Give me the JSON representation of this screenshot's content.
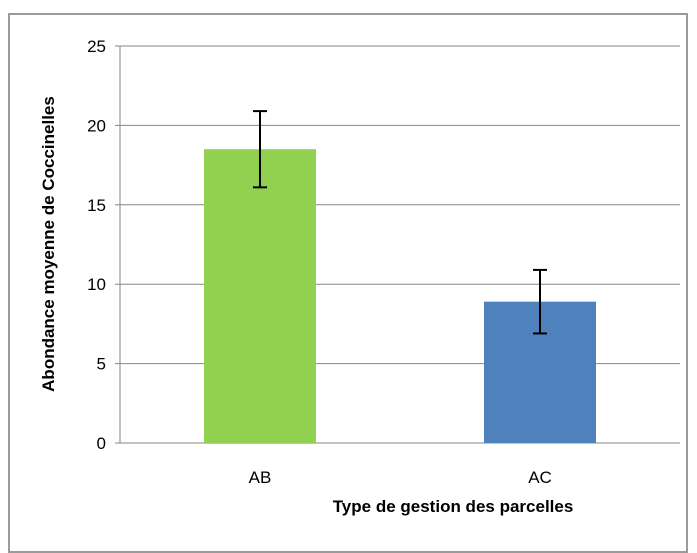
{
  "chart_data": {
    "type": "bar",
    "categories": [
      "AB",
      "AC"
    ],
    "values": [
      18.5,
      8.9
    ],
    "error": [
      2.4,
      2.0
    ],
    "colors": [
      "#92d050",
      "#4f81bd"
    ],
    "xlabel": "Type de gestion des parcelles",
    "ylabel": "Abondance moyenne de Coccinelles",
    "ylim": [
      0,
      25
    ],
    "yticks": [
      0,
      5,
      10,
      15,
      20,
      25
    ],
    "grid": true,
    "legend": "none"
  }
}
